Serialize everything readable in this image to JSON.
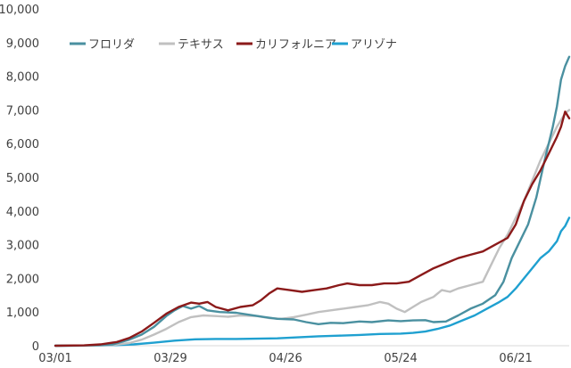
{
  "chart_data": {
    "type": "line",
    "x_start": "2020-03-01",
    "x_end": "2020-07-04",
    "x_ticks": [
      {
        "label": "03/01",
        "date": "2020-03-01"
      },
      {
        "label": "03/29",
        "date": "2020-03-29"
      },
      {
        "label": "04/26",
        "date": "2020-04-26"
      },
      {
        "label": "05/24",
        "date": "2020-05-24"
      },
      {
        "label": "06/21",
        "date": "2020-06-21"
      }
    ],
    "ylim": [
      0,
      10000
    ],
    "y_ticks": [
      {
        "value": 0,
        "label": "0"
      },
      {
        "value": 1000,
        "label": "1,000"
      },
      {
        "value": 2000,
        "label": "2,000"
      },
      {
        "value": 3000,
        "label": "3,000"
      },
      {
        "value": 4000,
        "label": "4,000"
      },
      {
        "value": 5000,
        "label": "5,000"
      },
      {
        "value": 6000,
        "label": "6,000"
      },
      {
        "value": 7000,
        "label": "7,000"
      },
      {
        "value": 8000,
        "label": "8,000"
      },
      {
        "value": 9000,
        "label": "9,000"
      },
      {
        "value": 10000,
        "label": "10,000"
      }
    ],
    "grid": false,
    "legend_position": "top-left",
    "series": [
      {
        "name": "フロリダ",
        "color": "#4a90a0",
        "points": [
          [
            "2020-03-01",
            0
          ],
          [
            "2020-03-10",
            10
          ],
          [
            "2020-03-15",
            40
          ],
          [
            "2020-03-19",
            180
          ],
          [
            "2020-03-22",
            330
          ],
          [
            "2020-03-25",
            560
          ],
          [
            "2020-03-28",
            880
          ],
          [
            "2020-03-30",
            1050
          ],
          [
            "2020-04-01",
            1180
          ],
          [
            "2020-04-03",
            1100
          ],
          [
            "2020-04-05",
            1180
          ],
          [
            "2020-04-07",
            1050
          ],
          [
            "2020-04-10",
            1000
          ],
          [
            "2020-04-14",
            980
          ],
          [
            "2020-04-17",
            920
          ],
          [
            "2020-04-21",
            850
          ],
          [
            "2020-04-24",
            800
          ],
          [
            "2020-04-28",
            780
          ],
          [
            "2020-05-01",
            700
          ],
          [
            "2020-05-04",
            640
          ],
          [
            "2020-05-07",
            680
          ],
          [
            "2020-05-10",
            670
          ],
          [
            "2020-05-14",
            720
          ],
          [
            "2020-05-17",
            700
          ],
          [
            "2020-05-21",
            750
          ],
          [
            "2020-05-24",
            730
          ],
          [
            "2020-05-27",
            750
          ],
          [
            "2020-05-30",
            760
          ],
          [
            "2020-06-01",
            700
          ],
          [
            "2020-06-04",
            720
          ],
          [
            "2020-06-07",
            900
          ],
          [
            "2020-06-10",
            1100
          ],
          [
            "2020-06-13",
            1250
          ],
          [
            "2020-06-16",
            1500
          ],
          [
            "2020-06-18",
            1900
          ],
          [
            "2020-06-20",
            2600
          ],
          [
            "2020-06-22",
            3100
          ],
          [
            "2020-06-24",
            3600
          ],
          [
            "2020-06-26",
            4400
          ],
          [
            "2020-06-28",
            5500
          ],
          [
            "2020-06-30",
            6500
          ],
          [
            "2020-07-01",
            7100
          ],
          [
            "2020-07-02",
            7900
          ],
          [
            "2020-07-03",
            8300
          ],
          [
            "2020-07-04",
            8580
          ]
        ]
      },
      {
        "name": "テキサス",
        "color": "#c0c0c0",
        "points": [
          [
            "2020-03-01",
            0
          ],
          [
            "2020-03-10",
            5
          ],
          [
            "2020-03-15",
            20
          ],
          [
            "2020-03-19",
            80
          ],
          [
            "2020-03-22",
            180
          ],
          [
            "2020-03-25",
            330
          ],
          [
            "2020-03-28",
            500
          ],
          [
            "2020-03-31",
            700
          ],
          [
            "2020-04-03",
            850
          ],
          [
            "2020-04-06",
            900
          ],
          [
            "2020-04-09",
            880
          ],
          [
            "2020-04-12",
            860
          ],
          [
            "2020-04-15",
            900
          ],
          [
            "2020-04-19",
            880
          ],
          [
            "2020-04-22",
            820
          ],
          [
            "2020-04-25",
            800
          ],
          [
            "2020-04-28",
            850
          ],
          [
            "2020-05-01",
            920
          ],
          [
            "2020-05-04",
            1000
          ],
          [
            "2020-05-07",
            1050
          ],
          [
            "2020-05-10",
            1100
          ],
          [
            "2020-05-13",
            1150
          ],
          [
            "2020-05-16",
            1200
          ],
          [
            "2020-05-19",
            1300
          ],
          [
            "2020-05-21",
            1250
          ],
          [
            "2020-05-23",
            1100
          ],
          [
            "2020-05-25",
            1000
          ],
          [
            "2020-05-27",
            1150
          ],
          [
            "2020-05-29",
            1300
          ],
          [
            "2020-06-01",
            1450
          ],
          [
            "2020-06-03",
            1650
          ],
          [
            "2020-06-05",
            1600
          ],
          [
            "2020-06-07",
            1700
          ],
          [
            "2020-06-10",
            1800
          ],
          [
            "2020-06-13",
            1900
          ],
          [
            "2020-06-15",
            2400
          ],
          [
            "2020-06-17",
            2900
          ],
          [
            "2020-06-19",
            3300
          ],
          [
            "2020-06-21",
            3800
          ],
          [
            "2020-06-23",
            4300
          ],
          [
            "2020-06-25",
            4900
          ],
          [
            "2020-06-27",
            5500
          ],
          [
            "2020-06-29",
            6000
          ],
          [
            "2020-07-01",
            6500
          ],
          [
            "2020-07-03",
            6900
          ],
          [
            "2020-07-04",
            7000
          ]
        ]
      },
      {
        "name": "カリフォルニア",
        "color": "#8b1a1a",
        "points": [
          [
            "2020-03-01",
            0
          ],
          [
            "2020-03-08",
            10
          ],
          [
            "2020-03-12",
            40
          ],
          [
            "2020-03-16",
            110
          ],
          [
            "2020-03-19",
            230
          ],
          [
            "2020-03-22",
            420
          ],
          [
            "2020-03-25",
            680
          ],
          [
            "2020-03-28",
            950
          ],
          [
            "2020-03-31",
            1150
          ],
          [
            "2020-04-03",
            1280
          ],
          [
            "2020-04-05",
            1250
          ],
          [
            "2020-04-07",
            1300
          ],
          [
            "2020-04-09",
            1150
          ],
          [
            "2020-04-12",
            1050
          ],
          [
            "2020-04-15",
            1150
          ],
          [
            "2020-04-18",
            1200
          ],
          [
            "2020-04-20",
            1350
          ],
          [
            "2020-04-22",
            1550
          ],
          [
            "2020-04-24",
            1700
          ],
          [
            "2020-04-27",
            1650
          ],
          [
            "2020-04-30",
            1600
          ],
          [
            "2020-05-03",
            1650
          ],
          [
            "2020-05-06",
            1700
          ],
          [
            "2020-05-09",
            1800
          ],
          [
            "2020-05-11",
            1850
          ],
          [
            "2020-05-14",
            1800
          ],
          [
            "2020-05-17",
            1800
          ],
          [
            "2020-05-20",
            1850
          ],
          [
            "2020-05-23",
            1850
          ],
          [
            "2020-05-26",
            1900
          ],
          [
            "2020-05-29",
            2100
          ],
          [
            "2020-06-01",
            2300
          ],
          [
            "2020-06-04",
            2450
          ],
          [
            "2020-06-07",
            2600
          ],
          [
            "2020-06-10",
            2700
          ],
          [
            "2020-06-13",
            2800
          ],
          [
            "2020-06-16",
            3000
          ],
          [
            "2020-06-19",
            3200
          ],
          [
            "2020-06-21",
            3600
          ],
          [
            "2020-06-23",
            4300
          ],
          [
            "2020-06-25",
            4800
          ],
          [
            "2020-06-27",
            5200
          ],
          [
            "2020-06-29",
            5700
          ],
          [
            "2020-07-01",
            6200
          ],
          [
            "2020-07-02",
            6500
          ],
          [
            "2020-07-03",
            6950
          ],
          [
            "2020-07-04",
            6750
          ]
        ]
      },
      {
        "name": "アリゾナ",
        "color": "#1fa0d0",
        "points": [
          [
            "2020-03-01",
            0
          ],
          [
            "2020-03-10",
            5
          ],
          [
            "2020-03-15",
            15
          ],
          [
            "2020-03-20",
            40
          ],
          [
            "2020-03-25",
            90
          ],
          [
            "2020-03-30",
            150
          ],
          [
            "2020-04-04",
            190
          ],
          [
            "2020-04-09",
            200
          ],
          [
            "2020-04-14",
            200
          ],
          [
            "2020-04-19",
            210
          ],
          [
            "2020-04-24",
            220
          ],
          [
            "2020-04-29",
            250
          ],
          [
            "2020-05-04",
            280
          ],
          [
            "2020-05-09",
            300
          ],
          [
            "2020-05-14",
            320
          ],
          [
            "2020-05-19",
            350
          ],
          [
            "2020-05-24",
            360
          ],
          [
            "2020-05-27",
            380
          ],
          [
            "2020-05-30",
            420
          ],
          [
            "2020-06-02",
            500
          ],
          [
            "2020-06-05",
            600
          ],
          [
            "2020-06-08",
            750
          ],
          [
            "2020-06-11",
            900
          ],
          [
            "2020-06-14",
            1100
          ],
          [
            "2020-06-17",
            1300
          ],
          [
            "2020-06-19",
            1450
          ],
          [
            "2020-06-21",
            1700
          ],
          [
            "2020-06-23",
            2000
          ],
          [
            "2020-06-25",
            2300
          ],
          [
            "2020-06-27",
            2600
          ],
          [
            "2020-06-29",
            2800
          ],
          [
            "2020-07-01",
            3100
          ],
          [
            "2020-07-02",
            3400
          ],
          [
            "2020-07-03",
            3550
          ],
          [
            "2020-07-04",
            3800
          ]
        ]
      }
    ]
  }
}
